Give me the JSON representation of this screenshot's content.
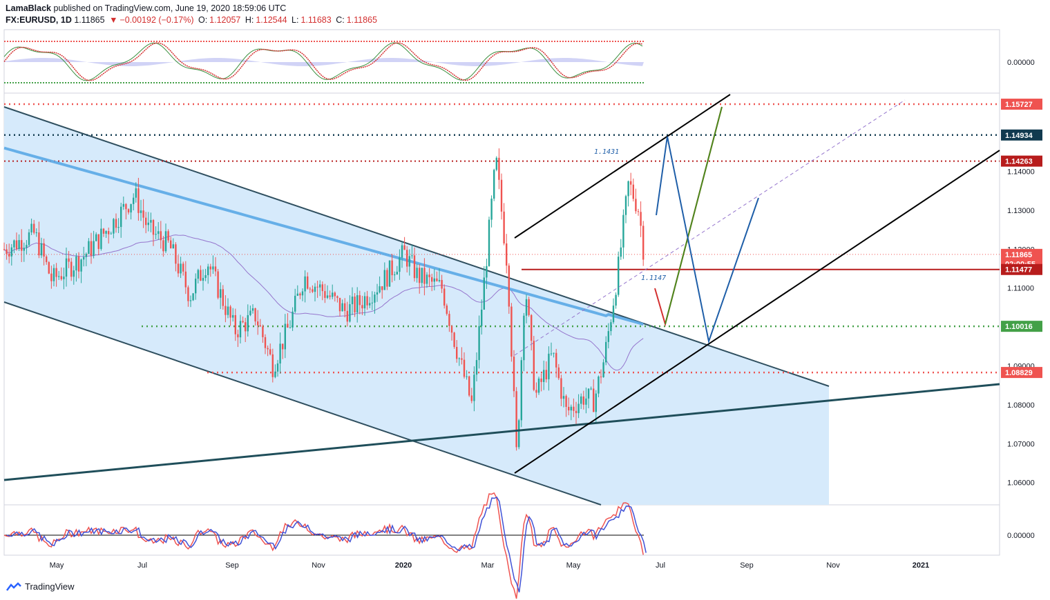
{
  "header": {
    "author": "LamaBlack",
    "published": "published on TradingView.com, June 19, 2020 18:59:06 UTC",
    "symbol": "FX:EURUSD, 1D",
    "last": "1.11865",
    "change": "−0.00192 (−0.17%)",
    "o_label": "O:",
    "o": "1.12057",
    "h_label": "H:",
    "h": "1.12544",
    "l_label": "L:",
    "l": "1.11683",
    "c_label": "C:",
    "c": "1.11865"
  },
  "footer": {
    "brand": "TradingView"
  },
  "colors": {
    "channel_fill": "#d6eafb",
    "ma_thick": "#5aa9e6",
    "ma_thin": "#9575cd",
    "up": "#26a69a",
    "down": "#ef5350",
    "red_level": "#b71c1c",
    "navy_level": "#113a4f",
    "green_level": "#43a047",
    "proj_blue": "#1e5ea8",
    "proj_green": "#4a8a1e",
    "proj_red": "#d32f2f"
  },
  "chart_data": {
    "type": "candlestick",
    "title": "",
    "ylim": [
      1.055,
      1.165
    ],
    "y_ticks": [
      "1.14000",
      "1.13000",
      "1.12000",
      "1.11000",
      "1.10000",
      "1.09000",
      "1.08000",
      "1.07000",
      "1.06000"
    ],
    "x_ticks": [
      "May",
      "Jul",
      "Sep",
      "Nov",
      "2020",
      "Mar",
      "May",
      "Jul",
      "Sep",
      "Nov",
      "2021"
    ],
    "price_tags": [
      {
        "label": "1.15727",
        "value": 1.15727,
        "color": "#ef5350"
      },
      {
        "label": "1.14934",
        "value": 1.14934,
        "color": "#113a4f"
      },
      {
        "label": "1.14263",
        "value": 1.14263,
        "color": "#b71c1c"
      },
      {
        "label": "1.11865",
        "value": 1.11865,
        "color": "#ef5350"
      },
      {
        "label": "02:00:55",
        "value": 1.1162,
        "color": "#ef5350"
      },
      {
        "label": "1.11477",
        "value": 1.11477,
        "color": "#b71c1c"
      },
      {
        "label": "1.10016",
        "value": 1.10016,
        "color": "#43a047"
      },
      {
        "label": "1.08829",
        "value": 1.08829,
        "color": "#ef5350"
      }
    ],
    "annotations": [
      {
        "label": "1.1431",
        "value": 1.1431
      },
      {
        "label": "1.1147",
        "value": 1.1147
      }
    ],
    "oscillator_top": {
      "y_tick": "0.00000"
    },
    "oscillator_bottom": {
      "y_tick": "0.00000"
    }
  }
}
